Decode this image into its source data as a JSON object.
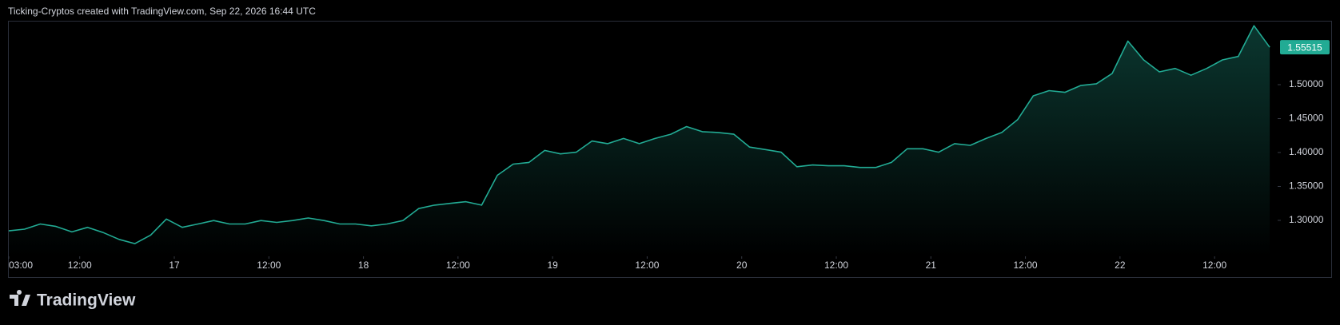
{
  "header": "Ticking-Cryptos created with TradingView.com, Sep 22, 2026 16:44 UTC",
  "watermark": "TradingView",
  "chart_data": {
    "type": "area-line",
    "x": [
      0,
      2,
      4,
      6,
      8,
      10,
      12,
      14,
      16,
      18,
      20,
      22,
      24,
      26,
      28,
      30,
      32,
      34,
      36,
      38,
      40,
      42,
      44,
      46,
      48,
      50,
      52,
      54,
      56,
      58,
      60,
      62,
      64,
      66,
      68,
      70,
      72,
      74,
      76,
      78,
      80,
      82,
      84,
      86,
      88,
      90,
      92,
      94,
      96,
      98,
      100,
      102,
      104,
      106,
      108,
      110,
      112,
      114,
      116,
      118,
      120,
      122,
      124,
      126,
      128,
      130,
      132,
      134,
      136,
      138,
      140,
      142,
      144,
      146,
      148,
      150,
      152,
      154,
      156,
      158,
      160
    ],
    "series": [
      {
        "color": "#22ab94",
        "values": [
          1.2846,
          1.287,
          1.2947,
          1.291,
          1.283,
          1.2897,
          1.282,
          1.272,
          1.2657,
          1.2783,
          1.302,
          1.2897,
          1.2947,
          1.2997,
          1.2947,
          1.2947,
          1.2997,
          1.297,
          1.2997,
          1.3035,
          1.2997,
          1.2947,
          1.2947,
          1.292,
          1.2947,
          1.2997,
          1.3174,
          1.3224,
          1.325,
          1.3275,
          1.3224,
          1.3665,
          1.3829,
          1.3854,
          1.403,
          1.398,
          1.4005,
          1.4169,
          1.413,
          1.4207,
          1.413,
          1.4207,
          1.427,
          1.4383,
          1.4307,
          1.4295,
          1.427,
          1.408,
          1.4043,
          1.4005,
          1.379,
          1.3816,
          1.3804,
          1.3804,
          1.378,
          1.378,
          1.3854,
          1.4055,
          1.4055,
          1.4005,
          1.413,
          1.4106,
          1.4207,
          1.4295,
          1.4484,
          1.4836,
          1.4912,
          1.4887,
          1.4987,
          1.5013,
          1.5164,
          1.5642,
          1.5365,
          1.5189,
          1.5239,
          1.5139,
          1.5239,
          1.5365,
          1.5416,
          1.5869,
          1.55515
        ]
      }
    ],
    "xlim": [
      0,
      161
    ],
    "ylim": [
      1.247,
      1.593
    ],
    "xticks": [
      {
        "value": 0,
        "label": "03:00"
      },
      {
        "value": 9,
        "label": "12:00"
      },
      {
        "value": 21,
        "label": "17"
      },
      {
        "value": 33,
        "label": "12:00"
      },
      {
        "value": 45,
        "label": "18"
      },
      {
        "value": 57,
        "label": "12:00"
      },
      {
        "value": 69,
        "label": "19"
      },
      {
        "value": 81,
        "label": "12:00"
      },
      {
        "value": 93,
        "label": "20"
      },
      {
        "value": 105,
        "label": "12:00"
      },
      {
        "value": 117,
        "label": "21"
      },
      {
        "value": 129,
        "label": "12:00"
      },
      {
        "value": 141,
        "label": "22"
      },
      {
        "value": 153,
        "label": "12:00"
      }
    ],
    "yticks": [
      {
        "value": 1.3,
        "label": "1.30000"
      },
      {
        "value": 1.35,
        "label": "1.35000"
      },
      {
        "value": 1.4,
        "label": "1.40000"
      },
      {
        "value": 1.45,
        "label": "1.45000"
      },
      {
        "value": 1.5,
        "label": "1.50000"
      }
    ],
    "grid": false
  }
}
